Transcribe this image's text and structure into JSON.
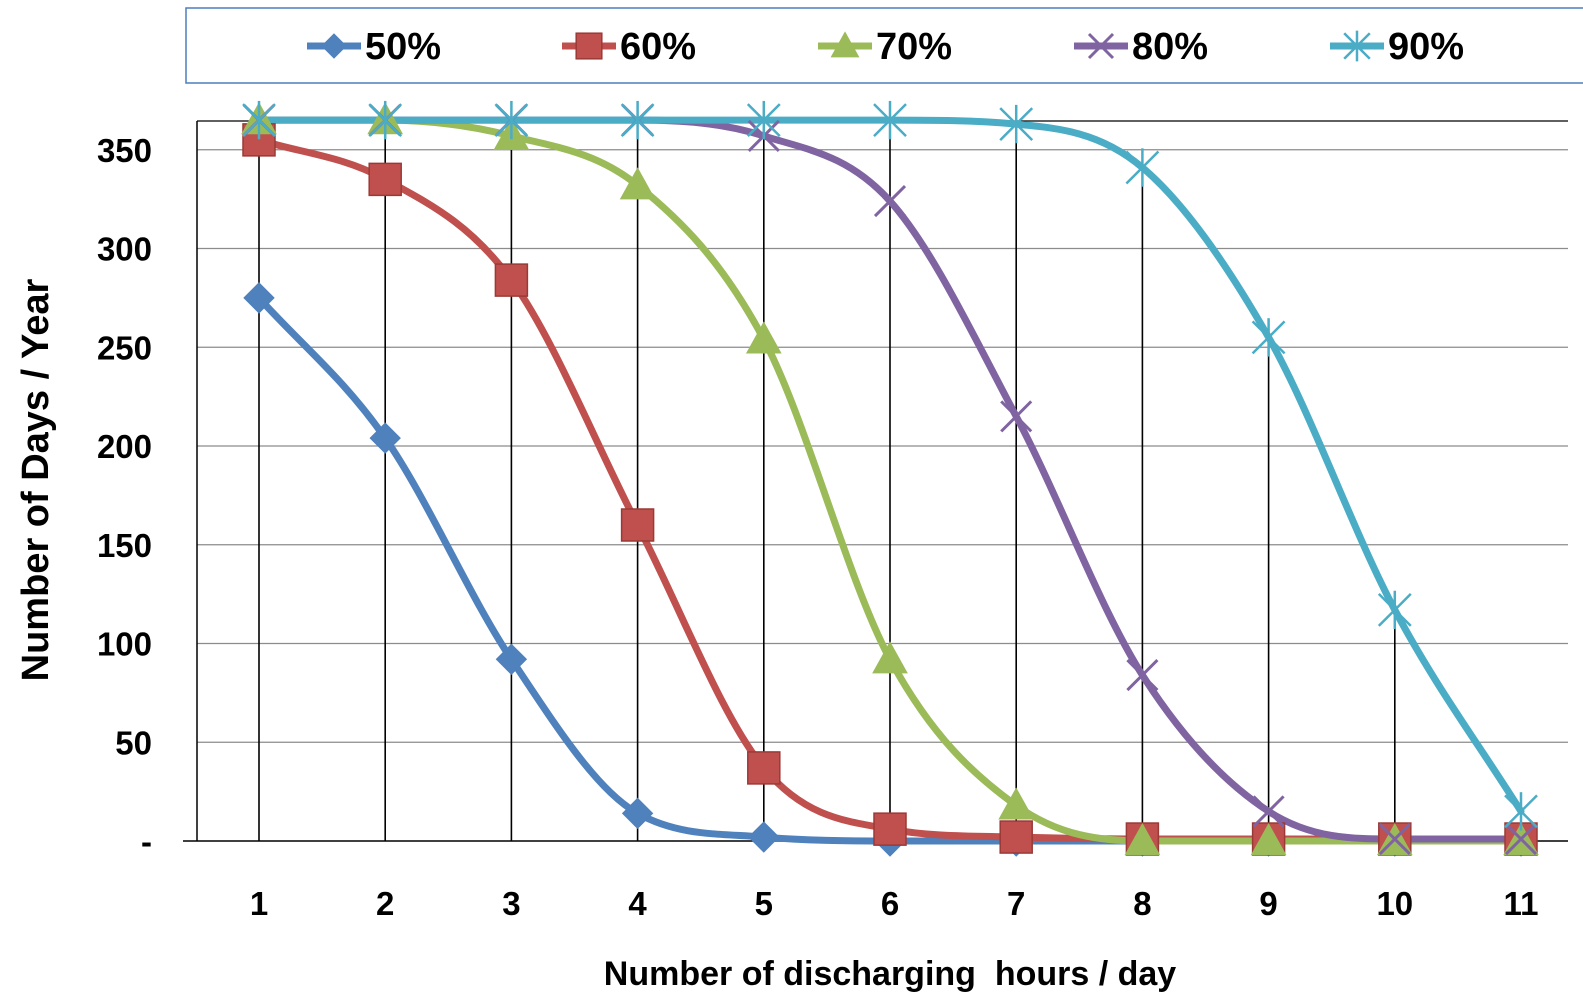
{
  "chart_data": {
    "type": "line",
    "xlabel": "Number of discharging  hours / day",
    "ylabel": "Number of Days / Year",
    "x": [
      1,
      2,
      3,
      4,
      5,
      6,
      7,
      8,
      9,
      10,
      11
    ],
    "xlim": [
      1,
      11
    ],
    "ylim": [
      0,
      365
    ],
    "yticks": [
      {
        "value": 0,
        "label": "-"
      },
      {
        "value": 50,
        "label": "50"
      },
      {
        "value": 100,
        "label": "100"
      },
      {
        "value": 150,
        "label": "150"
      },
      {
        "value": 200,
        "label": "200"
      },
      {
        "value": 250,
        "label": "250"
      },
      {
        "value": 300,
        "label": "300"
      },
      {
        "value": 350,
        "label": "350"
      }
    ],
    "grid": {
      "horizontal": true,
      "vertical_drop_lines": true
    },
    "legend_position": "top",
    "smooth": true,
    "series": [
      {
        "name": "50%",
        "color": "#4F81BD",
        "marker": "diamond",
        "values": [
          275,
          204,
          92,
          14,
          2,
          0,
          0,
          0,
          0,
          0,
          0
        ]
      },
      {
        "name": "60%",
        "color": "#C0504D",
        "marker": "square",
        "values": [
          355,
          335,
          284,
          160,
          37,
          6,
          2,
          1,
          1,
          1,
          1
        ]
      },
      {
        "name": "70%",
        "color": "#9BBB59",
        "marker": "triangle",
        "values": [
          365,
          365,
          357,
          332,
          254,
          92,
          18,
          0,
          0,
          0,
          0
        ]
      },
      {
        "name": "80%",
        "color": "#8064A2",
        "marker": "x",
        "values": [
          365,
          365,
          365,
          365,
          357,
          324,
          215,
          84,
          15,
          1,
          1
        ]
      },
      {
        "name": "90%",
        "color": "#4BACC6",
        "marker": "star",
        "values": [
          365,
          365,
          365,
          365,
          365,
          365,
          363,
          341,
          255,
          117,
          15
        ]
      }
    ]
  }
}
